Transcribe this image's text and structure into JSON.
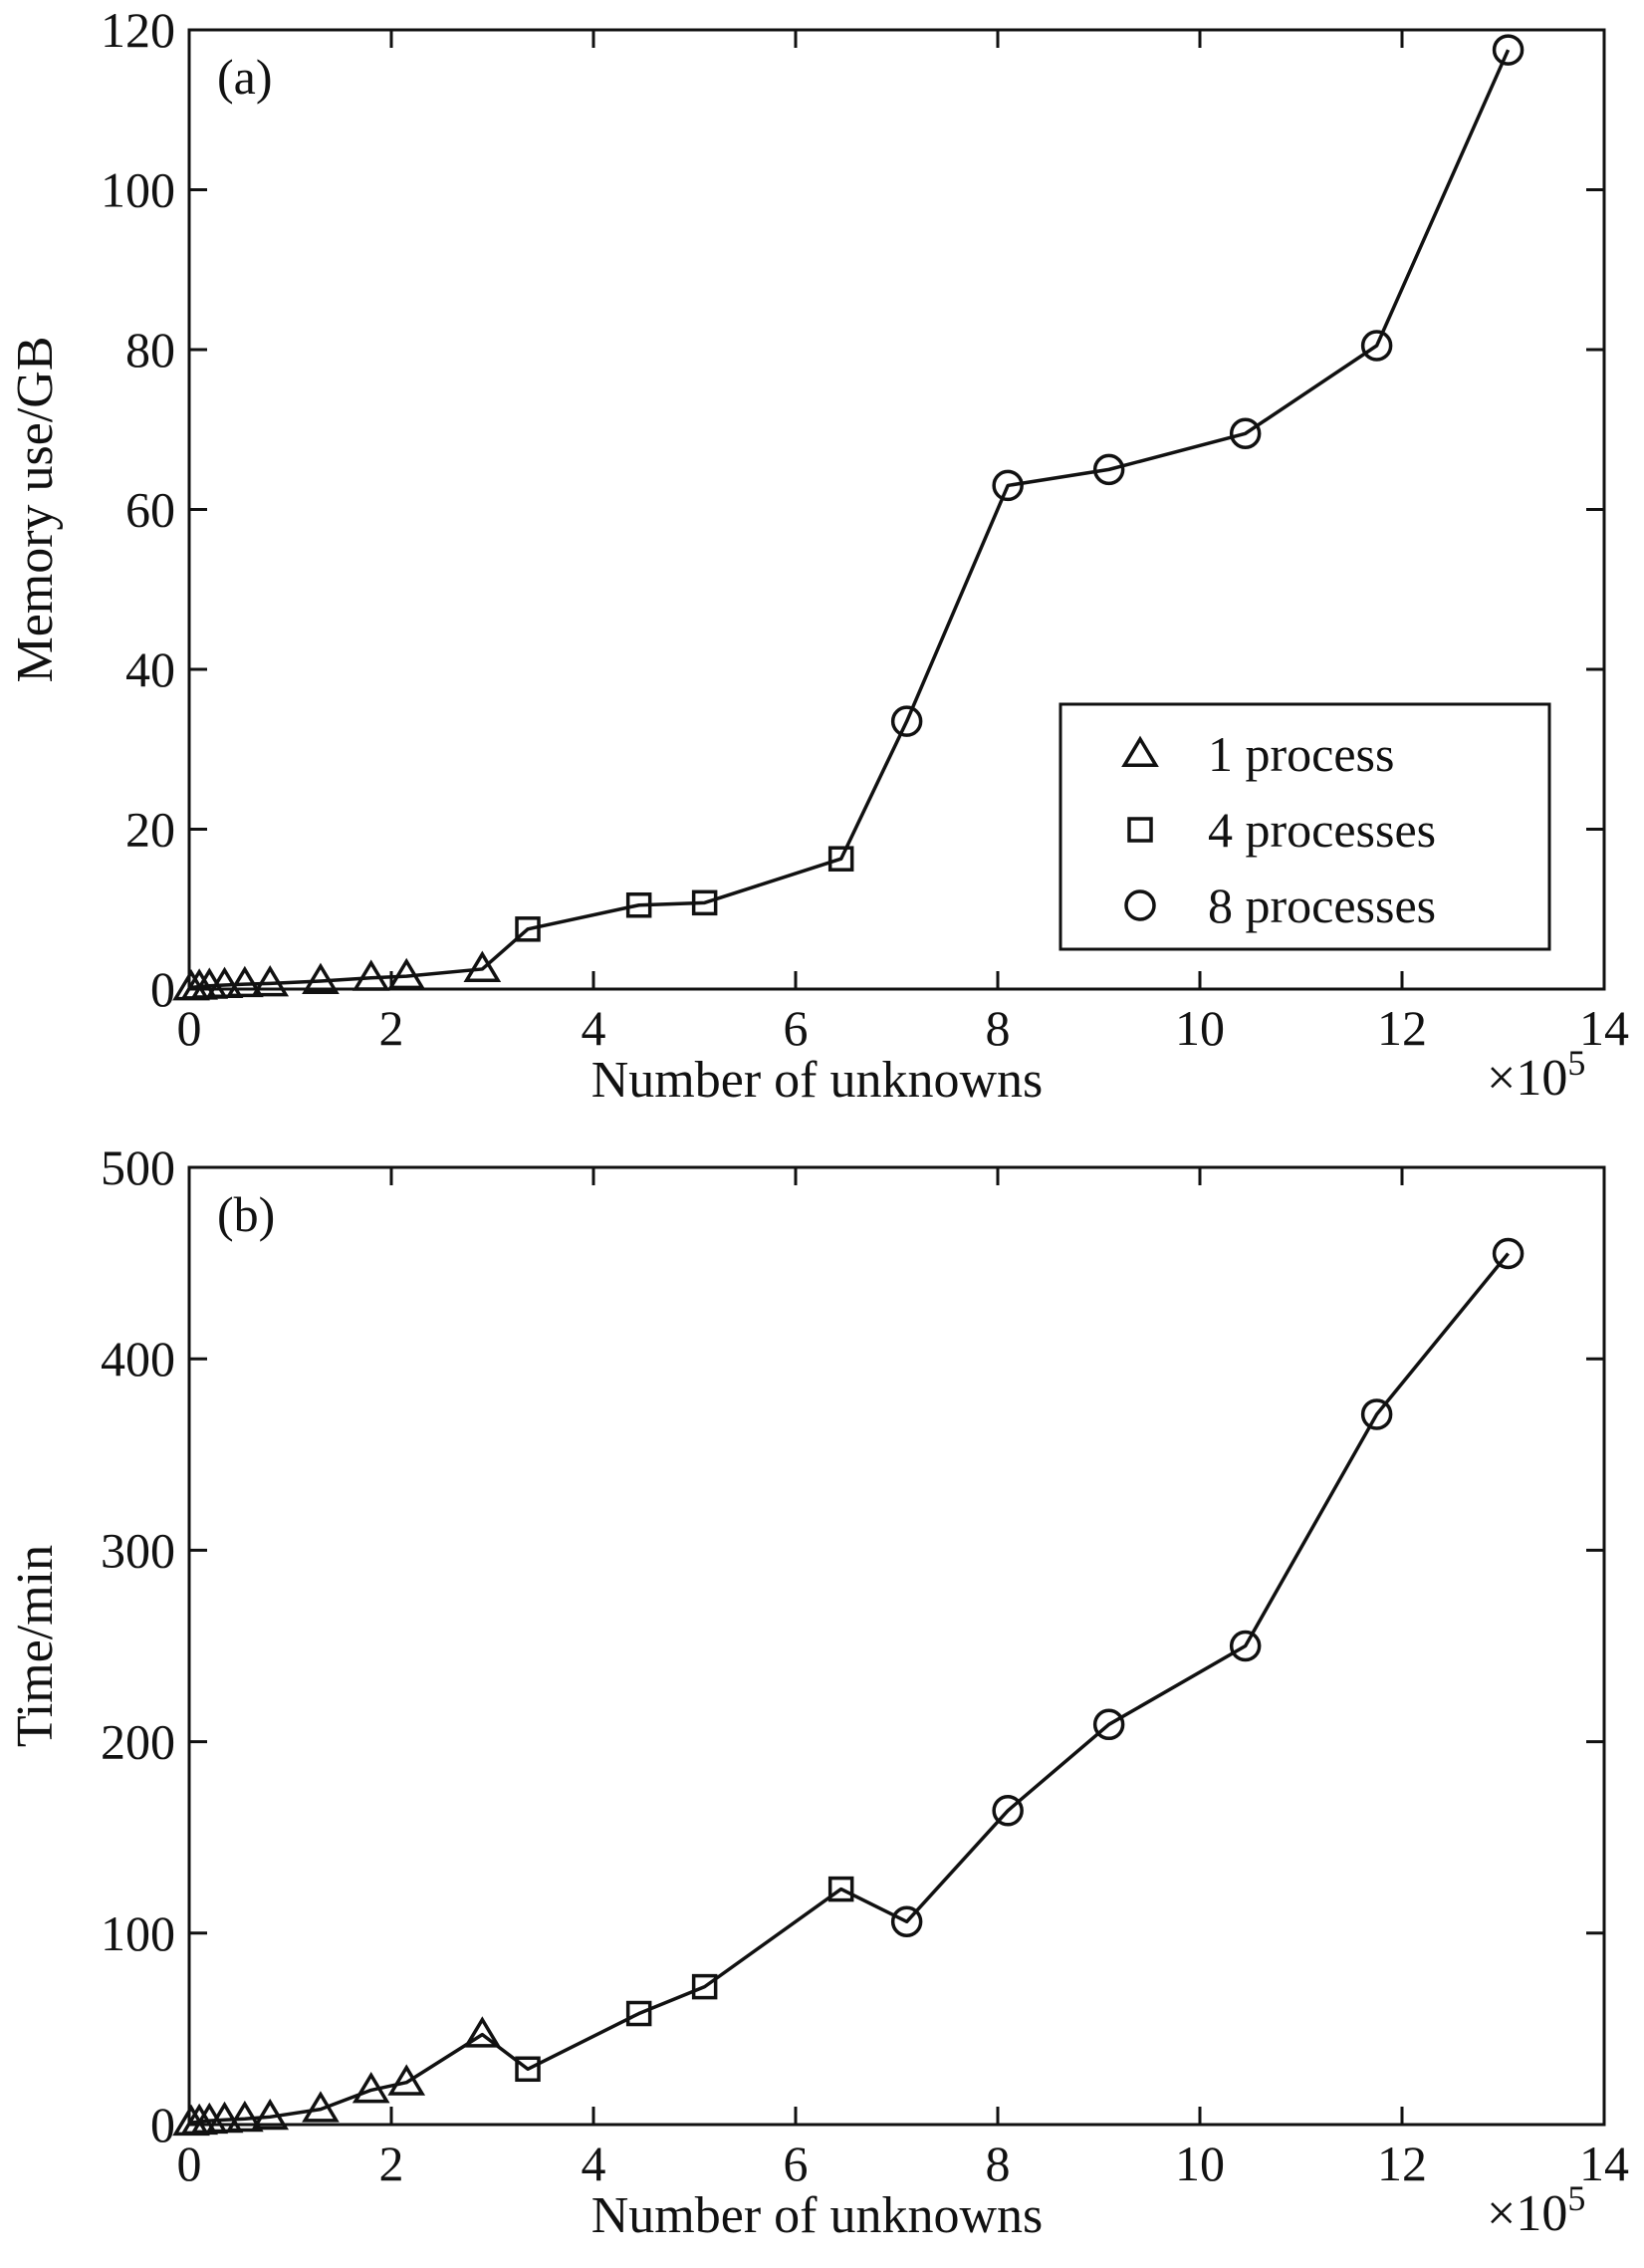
{
  "chart_data": [
    {
      "type": "line",
      "panel_label": "(a)",
      "xlabel": "Number of unknowns",
      "x_multiplier": "×10",
      "x_exponent": "5",
      "ylabel": "Memory use/GB",
      "xlim": [
        0,
        14
      ],
      "ylim": [
        0,
        120
      ],
      "xticks": [
        "0",
        "2",
        "4",
        "6",
        "8",
        "10",
        "12",
        "14"
      ],
      "yticks": [
        "0",
        "20",
        "40",
        "60",
        "80",
        "100",
        "120"
      ],
      "legend": {
        "position": "center-right",
        "entries": [
          {
            "marker": "triangle",
            "label": "1 process"
          },
          {
            "marker": "square",
            "label": "4 processes"
          },
          {
            "marker": "circle",
            "label": "8 processes"
          }
        ]
      },
      "series": [
        {
          "name": "1 process",
          "marker": "triangle",
          "x": [
            0.02,
            0.1,
            0.2,
            0.35,
            0.55,
            0.8,
            1.3,
            1.8,
            2.15,
            2.9
          ],
          "y": [
            0.2,
            0.3,
            0.4,
            0.5,
            0.6,
            0.7,
            1.0,
            1.4,
            1.6,
            2.5
          ]
        },
        {
          "name": "4 processes",
          "marker": "square",
          "x": [
            3.35,
            4.45,
            5.1,
            6.45
          ],
          "y": [
            7.5,
            10.5,
            10.8,
            16.3
          ]
        },
        {
          "name": "8 processes",
          "marker": "circle",
          "x": [
            7.1,
            8.1,
            9.1,
            10.45,
            11.75,
            13.05
          ],
          "y": [
            33.5,
            63,
            65,
            69.5,
            80.5,
            117.5
          ]
        }
      ]
    },
    {
      "type": "line",
      "panel_label": "(b)",
      "xlabel": "Number of unknowns",
      "x_multiplier": "×10",
      "x_exponent": "5",
      "ylabel": "Time/min",
      "xlim": [
        0,
        14
      ],
      "ylim": [
        0,
        500
      ],
      "xticks": [
        "0",
        "2",
        "4",
        "6",
        "8",
        "10",
        "12",
        "14"
      ],
      "yticks": [
        "0",
        "100",
        "200",
        "300",
        "400",
        "500"
      ],
      "series": [
        {
          "name": "1 process",
          "marker": "triangle",
          "x": [
            0.02,
            0.1,
            0.2,
            0.35,
            0.55,
            0.8,
            1.3,
            1.8,
            2.15,
            2.9
          ],
          "y": [
            1,
            1.5,
            2,
            2.5,
            3,
            4,
            8,
            18,
            22,
            47
          ]
        },
        {
          "name": "4 processes",
          "marker": "square",
          "x": [
            3.35,
            4.45,
            5.1,
            6.45
          ],
          "y": [
            29,
            58,
            72,
            123
          ]
        },
        {
          "name": "8 processes",
          "marker": "circle",
          "x": [
            7.1,
            8.1,
            9.1,
            10.45,
            11.75,
            13.05
          ],
          "y": [
            106,
            164,
            209,
            250,
            371,
            455
          ]
        }
      ]
    }
  ]
}
